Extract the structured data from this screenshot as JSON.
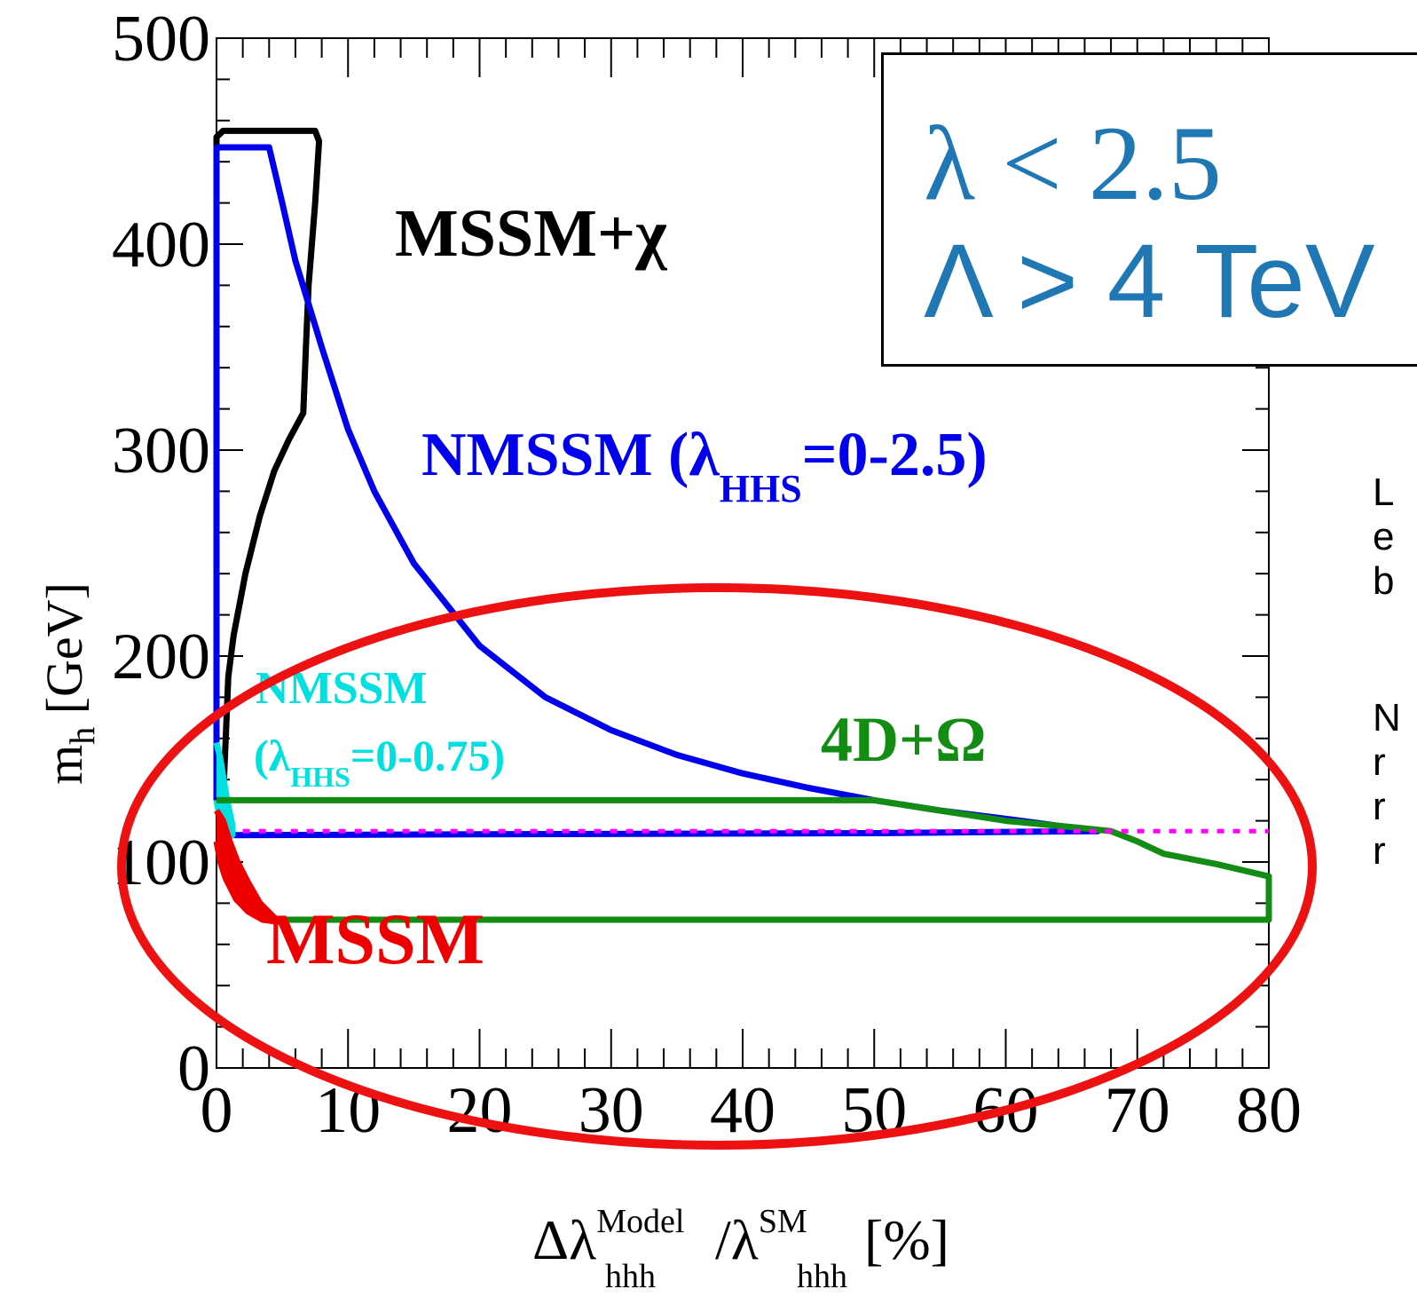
{
  "chart_data": {
    "type": "line",
    "xlim": [
      0,
      80
    ],
    "ylim": [
      0,
      500
    ],
    "x_ticks": [
      "0",
      "10",
      "20",
      "30",
      "40",
      "50",
      "60",
      "70",
      "80"
    ],
    "y_ticks": [
      "0",
      "100",
      "200",
      "300",
      "400",
      "500"
    ],
    "xlabel_main": "Δλ",
    "xlabel_sup1": "Model",
    "xlabel_sub1": "hhh",
    "xlabel_mid": " /λ",
    "xlabel_sup2": "SM",
    "xlabel_sub2": "hhh",
    "xlabel_tail": " [%]",
    "ylabel_main": "m",
    "ylabel_sub": "h",
    "ylabel_tail": " [GeV]",
    "series": [
      {
        "name": "MSSM+χ",
        "color": "#000000",
        "points": [
          [
            0,
            130
          ],
          [
            0,
            452
          ],
          [
            0.5,
            455
          ],
          [
            7.5,
            455
          ],
          [
            7.8,
            450
          ],
          [
            7.5,
            420
          ],
          [
            7,
            380
          ],
          [
            6.8,
            350
          ],
          [
            6.6,
            318
          ],
          [
            5.5,
            305
          ],
          [
            4.4,
            290
          ],
          [
            3.3,
            268
          ],
          [
            2.2,
            240
          ],
          [
            1.3,
            210
          ],
          [
            0.9,
            190
          ],
          [
            0.7,
            160
          ],
          [
            0.5,
            130
          ]
        ]
      },
      {
        "name": "NMSSM (λHHS=0-2.5)",
        "color": "#0000ee",
        "points": [
          [
            0,
            130
          ],
          [
            0,
            447
          ],
          [
            4,
            447
          ],
          [
            5,
            420
          ],
          [
            6,
            392
          ],
          [
            8,
            350
          ],
          [
            10,
            310
          ],
          [
            12,
            280
          ],
          [
            15,
            245
          ],
          [
            20,
            205
          ],
          [
            25,
            180
          ],
          [
            30,
            164
          ],
          [
            35,
            152
          ],
          [
            40,
            143
          ],
          [
            45,
            136
          ],
          [
            50,
            130
          ],
          [
            55,
            125
          ],
          [
            60,
            121
          ],
          [
            67,
            115
          ],
          [
            50,
            114
          ],
          [
            20,
            113.5
          ],
          [
            1,
            113
          ],
          [
            0.5,
            125
          ],
          [
            0.3,
            130
          ]
        ]
      },
      {
        "name": "NMSSM (λHHS=0-0.75)",
        "color": "#00e0e0",
        "points": [
          [
            0,
            158
          ],
          [
            0.3,
            150
          ],
          [
            0.8,
            130
          ],
          [
            1.2,
            118
          ],
          [
            1.2,
            113
          ],
          [
            0.3,
            120
          ],
          [
            0,
            130
          ]
        ]
      },
      {
        "name": "MSSM",
        "color": "#ee0000",
        "points": [
          [
            0,
            125
          ],
          [
            0.5,
            120
          ],
          [
            1,
            110
          ],
          [
            1.6,
            100
          ],
          [
            2.4,
            90
          ],
          [
            3.3,
            80
          ],
          [
            4.7,
            71
          ],
          [
            3.5,
            72
          ],
          [
            2.4,
            76
          ],
          [
            1.5,
            82
          ],
          [
            0.7,
            92
          ],
          [
            0.3,
            100
          ],
          [
            0,
            110
          ]
        ]
      },
      {
        "name": "4D+Ω",
        "color": "#128c12",
        "points": [
          [
            0,
            130
          ],
          [
            50,
            130
          ],
          [
            55,
            125
          ],
          [
            60,
            120
          ],
          [
            65,
            117
          ],
          [
            68,
            115
          ],
          [
            70,
            110
          ],
          [
            72,
            104
          ],
          [
            76,
            99
          ],
          [
            80,
            93
          ],
          [
            80,
            72
          ],
          [
            4.7,
            72
          ]
        ]
      },
      {
        "name": "",
        "color": "#ff00ff",
        "points": [
          [
            2,
            115
          ],
          [
            80,
            115
          ]
        ]
      }
    ],
    "annotations": [
      "MSSM+χ",
      "NMSSM (λHHS=0-2.5)",
      "NMSSM",
      "(λHHS=0-0.75)",
      "4D+Ω",
      "MSSM"
    ]
  },
  "labels": {
    "mssm_chi": "MSSM+χ",
    "nmssm_big_main": "NMSSM (λ",
    "nmssm_big_sub": "HHS",
    "nmssm_big_tail": "=0-2.5)",
    "nmssm_small_line1": "NMSSM",
    "nmssm_small_paren": "(λ",
    "nmssm_small_sub": "HHS",
    "nmssm_small_tail": "=0-0.75)",
    "fourd_omega": "4D+Ω",
    "mssm": "MSSM"
  },
  "callout": {
    "line1": "λ < 2.5",
    "line2": "Λ > 4 TeV"
  },
  "side_text": {
    "block1": "L\ne\nb",
    "block2": "N\nr\nr\nr"
  },
  "colors": {
    "mssm_chi": "#000000",
    "nmssm_big": "#0000ee",
    "nmssm_small": "#00e0e0",
    "mssm": "#ee0000",
    "fourd_omega": "#128c12",
    "sm_reference": "#ff00ff",
    "highlight_ellipse": "#ee1111",
    "callout_text": "#1f77b4"
  }
}
